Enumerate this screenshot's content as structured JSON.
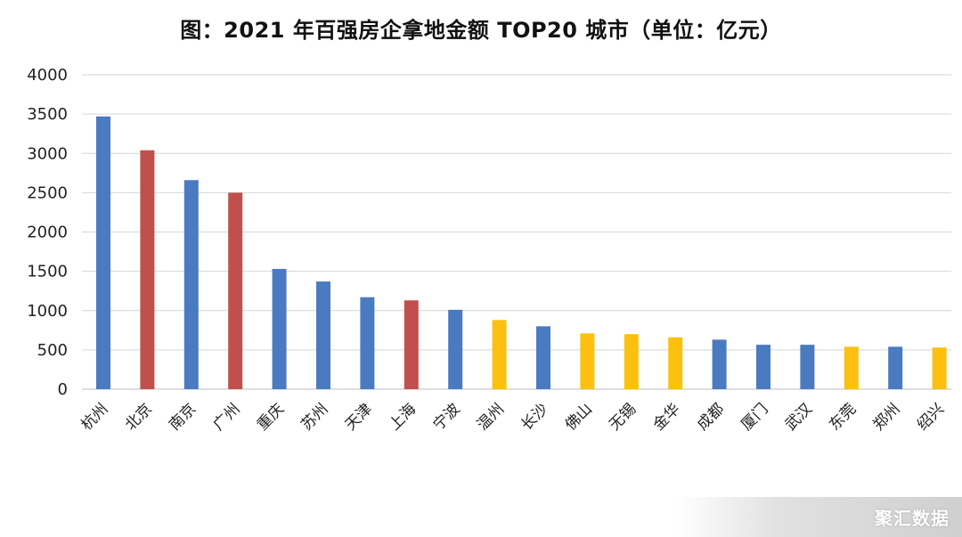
{
  "chart_data": {
    "type": "bar",
    "title": "图：2021 年百强房企拿地金额 TOP20 城市（单位：亿元）",
    "xlabel": "",
    "ylabel": "",
    "ylim": [
      0,
      4000
    ],
    "yticks": [
      0,
      500,
      1000,
      1500,
      2000,
      2500,
      3000,
      3500,
      4000
    ],
    "grid": true,
    "legend": "none",
    "categories": [
      "杭州",
      "北京",
      "南京",
      "广州",
      "重庆",
      "苏州",
      "天津",
      "上海",
      "宁波",
      "温州",
      "长沙",
      "佛山",
      "无锡",
      "金华",
      "成都",
      "厦门",
      "武汉",
      "东莞",
      "郑州",
      "绍兴"
    ],
    "values": [
      3470,
      3040,
      2660,
      2500,
      1530,
      1370,
      1170,
      1130,
      1010,
      880,
      800,
      710,
      700,
      660,
      630,
      565,
      565,
      540,
      540,
      530
    ],
    "bar_colors": [
      "#4a7ac0",
      "#c0504d",
      "#4a7ac0",
      "#c0504d",
      "#4a7ac0",
      "#4a7ac0",
      "#4a7ac0",
      "#c0504d",
      "#4a7ac0",
      "#fdc010",
      "#4a7ac0",
      "#fdc010",
      "#fdc010",
      "#fdc010",
      "#4a7ac0",
      "#4a7ac0",
      "#4a7ac0",
      "#fdc010",
      "#4a7ac0",
      "#fdc010"
    ]
  },
  "watermark": "聚汇数据"
}
